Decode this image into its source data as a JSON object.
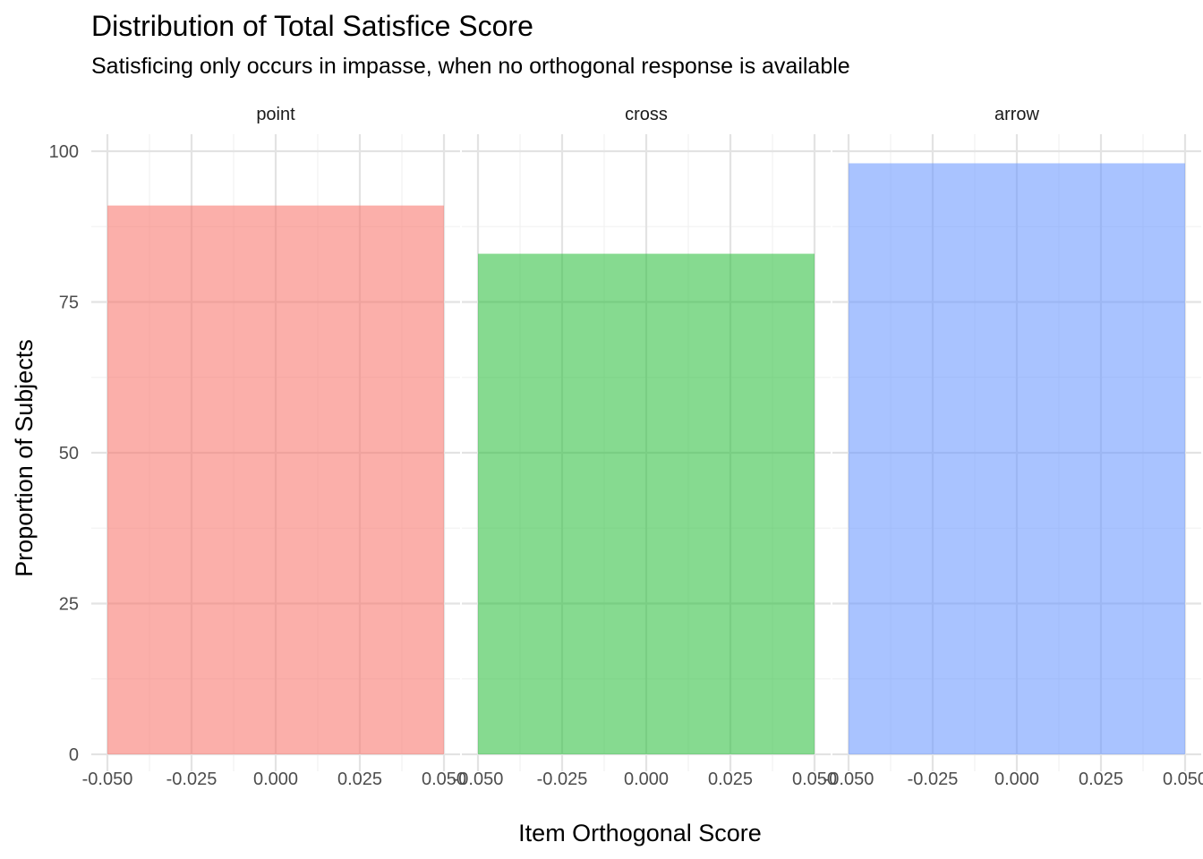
{
  "chart_data": {
    "type": "bar",
    "title": "Distribution of Total Satisfice Score",
    "subtitle": "Satisficing only occurs in impasse, when no orthogonal response is available",
    "xlabel": "Item Orthogonal Score",
    "ylabel": "Proportion of Subjects",
    "xlim": [
      -0.05,
      0.05
    ],
    "ylim": [
      0,
      100
    ],
    "x_ticks": [
      "-0.050",
      "-0.025",
      "0.000",
      "0.025",
      "0.050"
    ],
    "x_tick_values": [
      -0.05,
      -0.025,
      0,
      0.025,
      0.05
    ],
    "y_ticks": [
      "0",
      "25",
      "50",
      "75",
      "100"
    ],
    "y_tick_values": [
      0,
      25,
      50,
      75,
      100
    ],
    "grid": true,
    "legend": "none",
    "facets": [
      {
        "label": "point",
        "x": 0,
        "value": 91,
        "color": "#F8766D"
      },
      {
        "label": "cross",
        "x": 0,
        "value": 83,
        "color": "#2FBF40"
      },
      {
        "label": "arrow",
        "x": 0,
        "value": 98,
        "color": "#6A98FF"
      }
    ]
  }
}
